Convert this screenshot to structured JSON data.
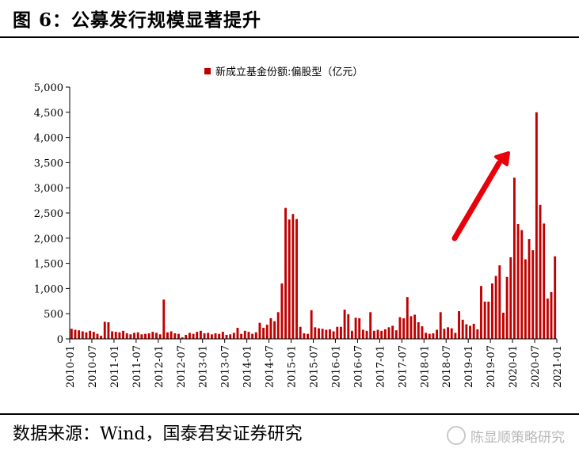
{
  "figure": {
    "title": "图 6：公募发行规模显著提升",
    "source": "数据来源：Wind，国泰君安证券研究",
    "watermark": "陈显顺策略研究"
  },
  "chart_data": {
    "type": "bar",
    "series": [
      {
        "name": "新成立基金份额:偏股型（亿元）",
        "color": "#C00000",
        "values": [
          200,
          180,
          170,
          150,
          130,
          160,
          140,
          100,
          60,
          340,
          330,
          150,
          140,
          130,
          160,
          110,
          90,
          120,
          130,
          90,
          100,
          110,
          140,
          120,
          90,
          780,
          130,
          150,
          110,
          100,
          30,
          80,
          120,
          100,
          140,
          160,
          110,
          120,
          90,
          110,
          100,
          140,
          80,
          90,
          120,
          220,
          100,
          160,
          140,
          100,
          130,
          320,
          220,
          280,
          410,
          350,
          530,
          1100,
          2600,
          2370,
          2480,
          2380,
          240,
          110,
          100,
          570,
          230,
          210,
          200,
          180,
          190,
          150,
          240,
          240,
          580,
          490,
          160,
          420,
          410,
          180,
          160,
          530,
          160,
          180,
          160,
          190,
          230,
          260,
          170,
          430,
          410,
          830,
          450,
          480,
          330,
          250,
          120,
          100,
          110,
          180,
          530,
          200,
          230,
          210,
          120,
          550,
          380,
          290,
          260,
          300,
          190,
          1050,
          740,
          740,
          1100,
          1250,
          1460,
          520,
          1230,
          1620,
          3200,
          2280,
          2160,
          1580,
          1980,
          1760,
          4500,
          2660,
          2290,
          800,
          930,
          1640
        ]
      }
    ],
    "x_start": "2010-01",
    "x_tick_labels": [
      "2010-01",
      "2010-07",
      "2011-01",
      "2011-07",
      "2012-01",
      "2012-07",
      "2013-01",
      "2013-07",
      "2014-01",
      "2014-07",
      "2015-01",
      "2015-07",
      "2016-01",
      "2016-07",
      "2017-01",
      "2017-07",
      "2018-01",
      "2018-07",
      "2019-01",
      "2019-07",
      "2020-01",
      "2020-07",
      "2021-01"
    ],
    "y_ticks": [
      0,
      500,
      1000,
      1500,
      2000,
      2500,
      3000,
      3500,
      4000,
      4500,
      5000
    ],
    "y_tick_labels": [
      "0",
      "500",
      "1,000",
      "1,500",
      "2,000",
      "2,500",
      "3,000",
      "3,500",
      "4,000",
      "4,500",
      "5,000"
    ],
    "ylim": [
      0,
      5000
    ],
    "grid": false,
    "legend_position": "top-center",
    "annotation": "red upward arrow over 2019–2020 bars"
  }
}
